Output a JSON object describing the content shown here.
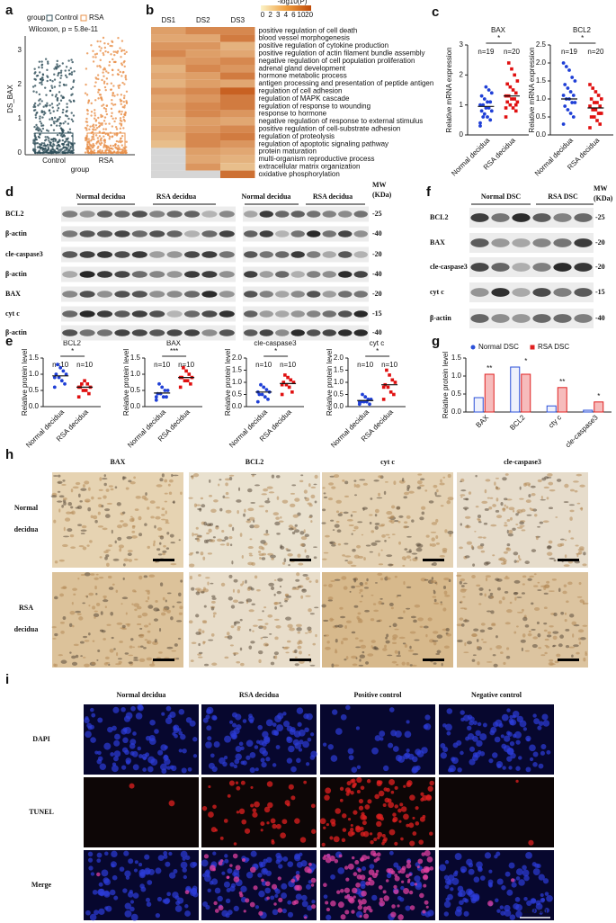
{
  "panels": {
    "a": {
      "label": "a",
      "legend_title": "group",
      "legend": [
        "Control",
        "RSA"
      ],
      "stat": "Wilcoxon, p = 5.8e-11",
      "ylabel": "DS_BAX",
      "xlabel": "group",
      "categories": [
        "Control",
        "RSA"
      ],
      "yticks": [
        "0",
        "1",
        "2",
        "3"
      ]
    },
    "b": {
      "label": "b",
      "columns": [
        "DS1",
        "DS2",
        "DS3"
      ],
      "colorbar_title": "-log10(P)",
      "colorbar_ticks": [
        "0",
        "2",
        "3",
        "4",
        "6",
        "10",
        "20"
      ],
      "terms": [
        "positive regulation of cell death",
        "blood vessel morphogenesis",
        "positive regulation of cytokine production",
        "positive regulation of actin filament bundle assembly",
        "negative regulation of cell population proliferation",
        "adrenal gland development",
        "hormone metabolic process",
        "antigen processing and presentation of peptide antigen",
        "regulation of cell adhesion",
        "regulation of MAPK cascade",
        "regulation of response to wounding",
        "response to hormone",
        "negative regulation of response to external stimulus",
        "positive regulation of cell-substrate adhesion",
        "regulation of proteolysis",
        {
          "text": "regulation of apoptotic signaling pathway",
          "color": "#e01010"
        },
        "protein maturation",
        "multi-organism reproductive process",
        "extracellular matrix organization",
        "oxidative phosphorylation"
      ],
      "values": [
        [
          5,
          8,
          8
        ],
        [
          4,
          4,
          10
        ],
        [
          6,
          6,
          3
        ],
        [
          8,
          5,
          4
        ],
        [
          5,
          6,
          8
        ],
        [
          3,
          8,
          6
        ],
        [
          4,
          5,
          10
        ],
        [
          3,
          5,
          4
        ],
        [
          6,
          8,
          15
        ],
        [
          4,
          6,
          10
        ],
        [
          5,
          8,
          10
        ],
        [
          4,
          8,
          6
        ],
        [
          3,
          5,
          4
        ],
        [
          4,
          6,
          8
        ],
        [
          3,
          8,
          10
        ],
        [
          2,
          8,
          6
        ],
        [
          null,
          5,
          4
        ],
        [
          null,
          4,
          3
        ],
        [
          null,
          6,
          2
        ],
        [
          null,
          null,
          12
        ]
      ]
    },
    "c": {
      "label": "c",
      "charts": [
        {
          "title": "BAX",
          "ylabel": "Relative mRNA expression",
          "categories": [
            "Normal decidua",
            "RSA decidua"
          ],
          "n": [
            "n=19",
            "n=20"
          ],
          "sig": "*",
          "colors": [
            "#1f3fd6",
            "#e01010"
          ],
          "ylim": [
            0,
            3
          ],
          "yticks": [
            0,
            1,
            2,
            3
          ],
          "points": [
            [
              0.3,
              0.5,
              0.6,
              0.7,
              0.8,
              0.8,
              0.9,
              0.9,
              1.0,
              1.0,
              1.1,
              1.1,
              1.2,
              1.3,
              1.4,
              1.5,
              1.6,
              0.6,
              0.4
            ],
            [
              0.6,
              0.8,
              0.9,
              1.0,
              1.1,
              1.1,
              1.2,
              1.2,
              1.3,
              1.3,
              1.4,
              1.5,
              1.6,
              1.7,
              1.8,
              2.0,
              2.2,
              2.4,
              0.9,
              1.0
            ]
          ],
          "means": [
            0.95,
            1.3
          ]
        },
        {
          "title": "BCL2",
          "ylabel": "Relative mRNA expression",
          "categories": [
            "Normal decidua",
            "RSA decidua"
          ],
          "n": [
            "n=19",
            "n=20"
          ],
          "sig": "*",
          "colors": [
            "#1f3fd6",
            "#e01010"
          ],
          "ylim": [
            0,
            2.5
          ],
          "yticks": [
            {
              "value": 0,
              "label": "0.0"
            },
            0.5,
            {
              "value": 1,
              "label": "1.0"
            },
            1.5,
            {
              "value": 2,
              "label": "2.0"
            },
            2.5
          ],
          "points": [
            [
              0.3,
              0.5,
              0.6,
              0.7,
              0.8,
              0.9,
              0.9,
              1.0,
              1.0,
              1.1,
              1.1,
              1.2,
              1.3,
              1.4,
              1.5,
              1.6,
              1.8,
              1.9,
              2.0
            ],
            [
              0.2,
              0.3,
              0.4,
              0.5,
              0.5,
              0.6,
              0.6,
              0.7,
              0.7,
              0.8,
              0.8,
              0.9,
              0.9,
              1.0,
              1.0,
              1.1,
              1.2,
              1.3,
              1.4,
              0.6
            ]
          ],
          "means": [
            1.0,
            0.75
          ]
        }
      ]
    },
    "d": {
      "label": "d",
      "headers": [
        "Normal decidua",
        "RSA decidua",
        "Normal decidua",
        "RSA decidua"
      ],
      "mw_title": [
        "MW",
        "(KDa)"
      ],
      "rows": [
        "BCL2",
        "β-actin",
        "cle-caspase3",
        "β-actin",
        "BAX",
        "cyt c",
        "β-actin"
      ],
      "mw": [
        "-25",
        "-40",
        "-20",
        "-40",
        "-20",
        "-15",
        "-40"
      ]
    },
    "e": {
      "label": "e",
      "charts": [
        {
          "title": "BCL2",
          "ylabel": "Relative protein level",
          "categories": [
            "Normal decidua",
            "RSA decidua"
          ],
          "n": [
            "n=10",
            "n=10"
          ],
          "sig": "*",
          "colors": [
            "#1f3fd6",
            "#e01010"
          ],
          "ylim": [
            0,
            1.5
          ],
          "yticks": [
            {
              "value": 0,
              "label": "0.0"
            },
            0.5,
            {
              "value": 1,
              "label": "1.0"
            },
            1.5
          ],
          "points": [
            [
              0.6,
              0.7,
              0.8,
              0.9,
              1.0,
              1.0,
              1.1,
              1.2,
              1.3,
              0.9
            ],
            [
              0.3,
              0.4,
              0.5,
              0.5,
              0.6,
              0.6,
              0.7,
              0.8,
              0.7,
              0.6
            ]
          ],
          "means": [
            0.95,
            0.6
          ]
        },
        {
          "title": "BAX",
          "ylabel": "Relative protein level",
          "categories": [
            "Normal decidua",
            "RSA decidua"
          ],
          "n": [
            "n=10",
            "n=10"
          ],
          "sig": "***",
          "colors": [
            "#1f3fd6",
            "#e01010"
          ],
          "ylim": [
            0,
            1.5
          ],
          "yticks": [
            {
              "value": 0,
              "label": "0.0"
            },
            0.5,
            {
              "value": 1,
              "label": "1.0"
            },
            1.5
          ],
          "points": [
            [
              0.2,
              0.3,
              0.3,
              0.4,
              0.4,
              0.5,
              0.5,
              0.6,
              0.7,
              0.3
            ],
            [
              0.6,
              0.7,
              0.8,
              0.8,
              0.9,
              0.9,
              1.0,
              1.1,
              1.2,
              0.9
            ]
          ],
          "means": [
            0.42,
            0.9
          ]
        },
        {
          "title": "cle-caspase3",
          "ylabel": "Relative protein level",
          "categories": [
            "Normal decidua",
            "RSA decidua"
          ],
          "n": [
            "n=10",
            "n=10"
          ],
          "sig": "*",
          "colors": [
            "#1f3fd6",
            "#e01010"
          ],
          "ylim": [
            0,
            2
          ],
          "yticks": [
            {
              "value": 0,
              "label": "0.0"
            },
            0.5,
            {
              "value": 1,
              "label": "1.0"
            },
            1.5,
            {
              "value": 2,
              "label": "2.0"
            }
          ],
          "points": [
            [
              0.2,
              0.3,
              0.4,
              0.5,
              0.5,
              0.6,
              0.7,
              0.8,
              0.9,
              0.6
            ],
            [
              0.5,
              0.6,
              0.8,
              0.9,
              1.0,
              1.0,
              1.1,
              1.2,
              1.3,
              0.9
            ]
          ],
          "means": [
            0.6,
            0.95
          ]
        },
        {
          "title": "cyt c",
          "ylabel": "Relative protein level",
          "categories": [
            "Normal decidua",
            "RSA decidua"
          ],
          "n": [
            "n=10",
            "n=10"
          ],
          "sig": "*",
          "colors": [
            "#1f3fd6",
            "#e01010"
          ],
          "ylim": [
            0,
            2
          ],
          "yticks": [
            {
              "value": 0,
              "label": "0.0"
            },
            0.5,
            {
              "value": 1,
              "label": "1.0"
            },
            1.5,
            {
              "value": 2,
              "label": "2.0"
            }
          ],
          "points": [
            [
              0.1,
              0.1,
              0.2,
              0.2,
              0.2,
              0.3,
              0.3,
              0.4,
              0.5,
              0.2
            ],
            [
              0.3,
              0.5,
              0.6,
              0.8,
              0.9,
              1.0,
              1.1,
              1.3,
              1.5,
              0.8
            ]
          ],
          "means": [
            0.25,
            0.9
          ]
        }
      ]
    },
    "f": {
      "label": "f",
      "headers": [
        "Normal DSC",
        "RSA DSC"
      ],
      "mw_title": [
        "MW",
        "(KDa)"
      ],
      "rows": [
        "BCL2",
        "BAX",
        "cle-caspase3",
        "cyt c",
        "β-actin"
      ],
      "mw": [
        "-25",
        "-20",
        "-20",
        "-15",
        "-40"
      ]
    },
    "g": {
      "label": "g",
      "ylabel": "Relative protein level",
      "categories": [
        "BAX",
        "BCL2",
        "cty c",
        "cle-caspase3"
      ],
      "sig": [
        "**",
        "*",
        "**",
        "*"
      ],
      "ylim": [
        0,
        1.5
      ],
      "yticks": [
        {
          "value": 0,
          "label": "0.0"
        },
        0.5,
        {
          "value": 1,
          "label": "1.0"
        },
        1.5
      ],
      "series": [
        {
          "name": "Normal DSC",
          "color": "#2b50d8",
          "values": [
            0.4,
            1.25,
            0.17,
            0.05
          ]
        },
        {
          "name": "RSA DSC",
          "color": "#e02020",
          "values": [
            1.05,
            1.05,
            0.68,
            0.28
          ]
        }
      ]
    },
    "h": {
      "label": "h",
      "columns": [
        "BAX",
        "BCL2",
        "cyt c",
        "cle-caspase3"
      ],
      "rows": [
        [
          "Normal",
          "decidua"
        ],
        [
          "RSA",
          "decidua"
        ]
      ]
    },
    "i": {
      "label": "i",
      "columns": [
        "Normal decidua",
        "RSA decidua",
        "Positive control",
        "Negative control"
      ],
      "rows": [
        "DAPI",
        "TUNEL",
        "Merge"
      ],
      "scale_bar": "100 μm"
    }
  }
}
